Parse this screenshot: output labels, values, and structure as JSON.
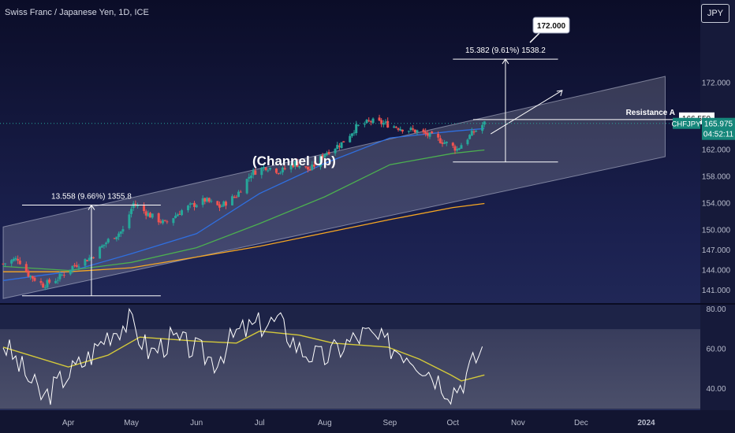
{
  "chart_data": [
    {
      "type": "candlestick",
      "title": "Swiss Franc / Japanese Yen, 1D, ICE",
      "symbol": "CHFJPY",
      "currency": "JPY",
      "y_axis": {
        "labels": [
          "172.000",
          "166.550",
          "165.975",
          "162.000",
          "158.000",
          "154.000",
          "150.000",
          "147.000",
          "144.000",
          "141.000"
        ],
        "ticks": [
          172,
          162,
          158,
          154,
          150,
          147,
          144,
          141
        ],
        "scale": "linear"
      },
      "x_axis": {
        "labels": [
          "Apr",
          "May",
          "Jun",
          "Jul",
          "Aug",
          "Sep",
          "Oct",
          "Nov",
          "Dec",
          "2024"
        ]
      },
      "price_path": [
        {
          "x": "Mar 1",
          "y": 145.0
        },
        {
          "x": "Mar 8",
          "y": 145.8
        },
        {
          "x": "Mar 13",
          "y": 143.4
        },
        {
          "x": "Mar 20",
          "y": 141.8
        },
        {
          "x": "Mar 27",
          "y": 142.8
        },
        {
          "x": "Apr 3",
          "y": 144.6
        },
        {
          "x": "Apr 12",
          "y": 146.0
        },
        {
          "x": "Apr 20",
          "y": 148.5
        },
        {
          "x": "Apr 27",
          "y": 150.0
        },
        {
          "x": "May 2",
          "y": 154.0
        },
        {
          "x": "May 10",
          "y": 152.2
        },
        {
          "x": "May 17",
          "y": 151.0
        },
        {
          "x": "May 26",
          "y": 153.2
        },
        {
          "x": "Jun 5",
          "y": 154.5
        },
        {
          "x": "Jun 12",
          "y": 153.5
        },
        {
          "x": "Jun 20",
          "y": 155.2
        },
        {
          "x": "Jun 27",
          "y": 158.5
        },
        {
          "x": "Jul 4",
          "y": 159.5
        },
        {
          "x": "Jul 11",
          "y": 158.8
        },
        {
          "x": "Jul 18",
          "y": 160.0
        },
        {
          "x": "Jul 25",
          "y": 159.0
        },
        {
          "x": "Aug 1",
          "y": 161.5
        },
        {
          "x": "Aug 9",
          "y": 163.0
        },
        {
          "x": "Aug 16",
          "y": 165.4
        },
        {
          "x": "Aug 23",
          "y": 166.3
        },
        {
          "x": "Aug 30",
          "y": 165.9
        },
        {
          "x": "Sep 7",
          "y": 165.2
        },
        {
          "x": "Sep 14",
          "y": 164.8
        },
        {
          "x": "Sep 21",
          "y": 164.0
        },
        {
          "x": "Sep 28",
          "y": 163.0
        },
        {
          "x": "Oct 3",
          "y": 162.1
        },
        {
          "x": "Oct 6",
          "y": 163.2
        },
        {
          "x": "Oct 11",
          "y": 164.7
        },
        {
          "x": "Oct 16",
          "y": 165.975
        }
      ],
      "series": [
        {
          "name": "",
          "color": "#2f6fe0",
          "values": [
            {
              "x": "Mar 1",
              "y": 142.5
            },
            {
              "x": "Apr 1",
              "y": 143.8
            },
            {
              "x": "May 1",
              "y": 146.5
            },
            {
              "x": "Jun 1",
              "y": 149.5
            },
            {
              "x": "Jul 1",
              "y": 155.5
            },
            {
              "x": "Aug 1",
              "y": 160.0
            },
            {
              "x": "Sep 1",
              "y": 163.8
            },
            {
              "x": "Oct 1",
              "y": 164.8
            },
            {
              "x": "Oct 16",
              "y": 165.2
            }
          ]
        },
        {
          "name": "",
          "color": "#4caf50",
          "values": [
            {
              "x": "Mar 1",
              "y": 144.6
            },
            {
              "x": "Apr 1",
              "y": 144.0
            },
            {
              "x": "May 1",
              "y": 145.2
            },
            {
              "x": "Jun 1",
              "y": 147.4
            },
            {
              "x": "Jul 1",
              "y": 151.0
            },
            {
              "x": "Aug 1",
              "y": 155.0
            },
            {
              "x": "Sep 1",
              "y": 159.8
            },
            {
              "x": "Oct 1",
              "y": 161.5
            },
            {
              "x": "Oct 16",
              "y": 162.0
            }
          ]
        },
        {
          "name": "",
          "color": "#f5a623",
          "values": [
            {
              "x": "Mar 1",
              "y": 143.8
            },
            {
              "x": "Apr 1",
              "y": 143.8
            },
            {
              "x": "May 1",
              "y": 144.4
            },
            {
              "x": "Jun 1",
              "y": 146.0
            },
            {
              "x": "Jul 1",
              "y": 147.6
            },
            {
              "x": "Aug 1",
              "y": 149.6
            },
            {
              "x": "Sep 1",
              "y": 151.6
            },
            {
              "x": "Oct 1",
              "y": 153.4
            },
            {
              "x": "Oct 16",
              "y": 154.0
            }
          ]
        }
      ],
      "channel": {
        "label": "(Channel Up)",
        "upper": [
          {
            "x": "Mar 1",
            "y": 150.5
          },
          {
            "x": "Jan 10",
            "y": 173.0
          }
        ],
        "lower": [
          {
            "x": "Mar 1",
            "y": 139.8
          },
          {
            "x": "Jan 10",
            "y": 161.0
          }
        ]
      },
      "horizontal_lines": [
        {
          "label": "Resistance A",
          "value": 166.55,
          "value_label": "166.550"
        }
      ],
      "price_label": {
        "symbol": "CHFJPY",
        "value": "165.975",
        "countdown": "04:52:11"
      },
      "measurements": [
        {
          "text": "13.558 (9.66%) 1355.8",
          "from": 140.2,
          "to": 153.758,
          "x_from": "Mar 10",
          "x_to": "May 15"
        },
        {
          "text": "15.382 (9.61%) 1538.2",
          "from": 160.2,
          "to": 175.58,
          "x_from": "Oct 1",
          "x_to": "Nov 20"
        }
      ],
      "target_callout": {
        "text": "172.000",
        "value": 172.0
      }
    },
    {
      "type": "line",
      "y_axis": {
        "labels": [
          "80.00",
          "60.00",
          "40.00"
        ],
        "ticks": [
          80,
          60,
          40
        ]
      },
      "band": [
        30,
        70
      ],
      "series": [
        {
          "name": "",
          "color": "#ffffff",
          "values": [
            {
              "x": "Mar 1",
              "y": 63
            },
            {
              "x": "Mar 10",
              "y": 50
            },
            {
              "x": "Mar 20",
              "y": 35
            },
            {
              "x": "Mar 31",
              "y": 47
            },
            {
              "x": "Apr 10",
              "y": 55
            },
            {
              "x": "Apr 20",
              "y": 68
            },
            {
              "x": "Apr 30",
              "y": 74
            },
            {
              "x": "May 10",
              "y": 58
            },
            {
              "x": "May 20",
              "y": 65
            },
            {
              "x": "May 31",
              "y": 60
            },
            {
              "x": "Jun 10",
              "y": 54
            },
            {
              "x": "Jun 20",
              "y": 68
            },
            {
              "x": "Jun 30",
              "y": 72
            },
            {
              "x": "Jul 10",
              "y": 74
            },
            {
              "x": "Jul 20",
              "y": 60
            },
            {
              "x": "Jul 31",
              "y": 55
            },
            {
              "x": "Aug 10",
              "y": 62
            },
            {
              "x": "Aug 20",
              "y": 68
            },
            {
              "x": "Aug 31",
              "y": 62
            },
            {
              "x": "Sep 10",
              "y": 58
            },
            {
              "x": "Sep 20",
              "y": 49
            },
            {
              "x": "Sep 30",
              "y": 39
            },
            {
              "x": "Oct 5",
              "y": 43
            },
            {
              "x": "Oct 10",
              "y": 52
            },
            {
              "x": "Oct 16",
              "y": 62
            }
          ]
        },
        {
          "name": "",
          "color": "#d4c93a",
          "values": [
            {
              "x": "Mar 1",
              "y": 61
            },
            {
              "x": "Apr 1",
              "y": 51
            },
            {
              "x": "Apr 20",
              "y": 57
            },
            {
              "x": "May 5",
              "y": 66
            },
            {
              "x": "Jun 1",
              "y": 64
            },
            {
              "x": "Jun 20",
              "y": 63
            },
            {
              "x": "Jul 1",
              "y": 69
            },
            {
              "x": "Jul 20",
              "y": 67
            },
            {
              "x": "Aug 5",
              "y": 63
            },
            {
              "x": "Aug 31",
              "y": 61
            },
            {
              "x": "Sep 15",
              "y": 55
            },
            {
              "x": "Sep 30",
              "y": 47
            },
            {
              "x": "Oct 5",
              "y": 44
            },
            {
              "x": "Oct 16",
              "y": 47
            }
          ]
        }
      ]
    }
  ],
  "colors": {
    "background_top": "#0d0f2b",
    "background_bottom": "#2a3363",
    "up": "#26a69a",
    "down": "#ef5350",
    "accent_teal": "#16877b"
  }
}
